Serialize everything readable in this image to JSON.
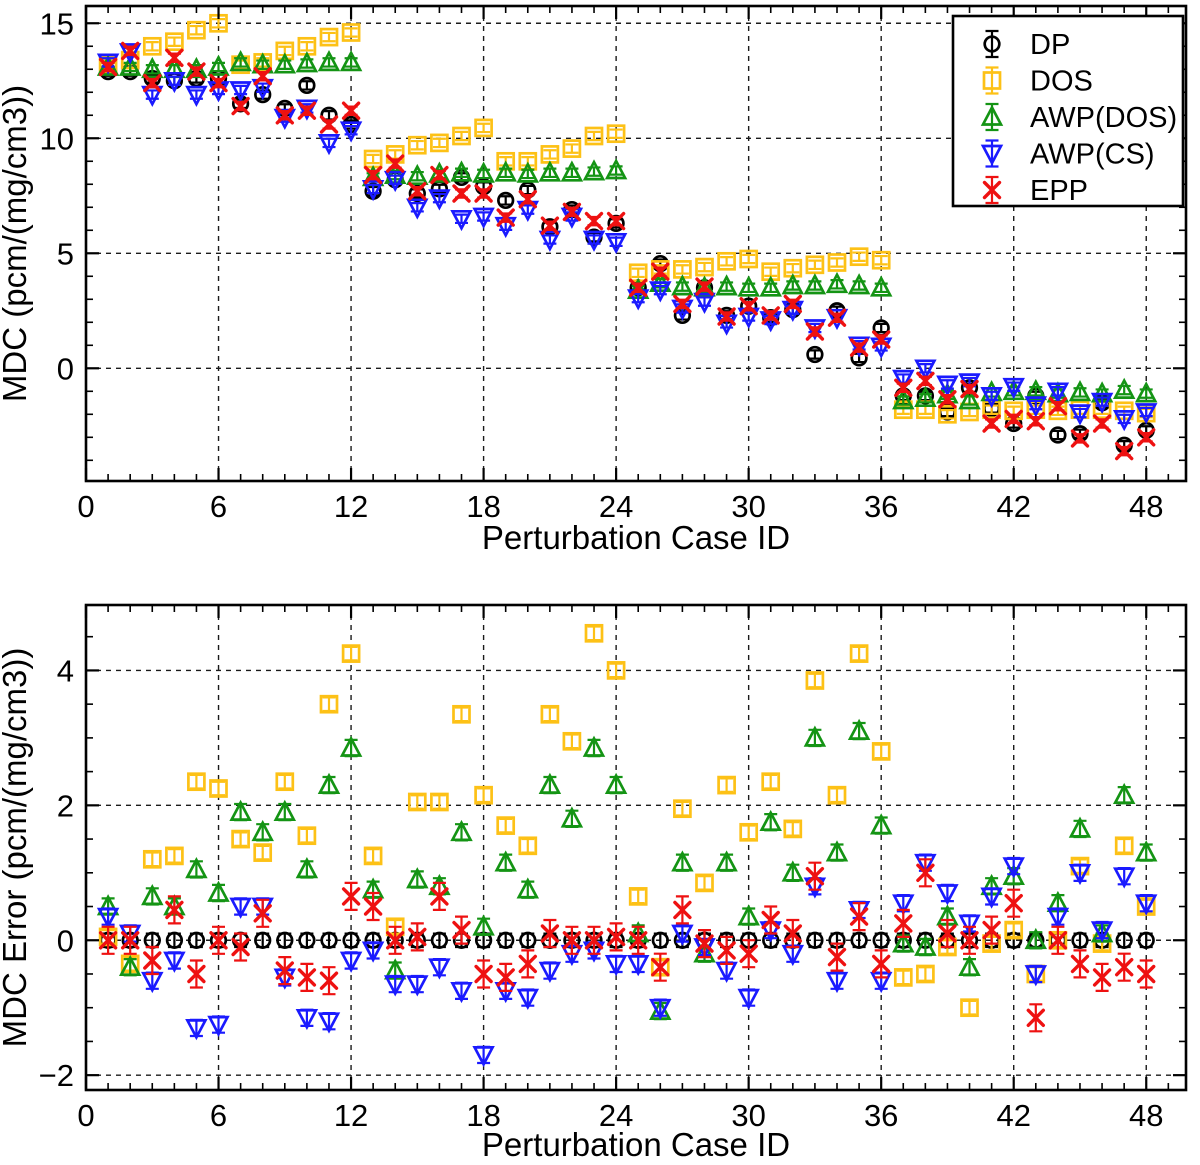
{
  "figure": {
    "background": "#ffffff"
  },
  "legend": {
    "items": [
      "DP",
      "DOS",
      "AWP(DOS)",
      "AWP(CS)",
      "EPP"
    ]
  },
  "colors": {
    "dp": "#000000",
    "dos": "#fdc116",
    "awp_dos": "#149414",
    "awp_cs": "#1a1aff",
    "epp": "#ee1111"
  },
  "chart_data": [
    {
      "id": "top",
      "type": "scatter",
      "title": "",
      "xlabel": "Perturbation Case ID",
      "ylabel": "MDC (pcm/(mg/cm3))",
      "xlim": [
        0,
        49.8
      ],
      "ylim": [
        -4.9,
        15.75
      ],
      "xticks": [
        0,
        6,
        12,
        18,
        24,
        30,
        36,
        42,
        48
      ],
      "yticks": [
        0,
        5,
        10,
        15
      ],
      "x_minor_step": 1,
      "y_minor_step": 1,
      "grid": "dashed",
      "legend": true,
      "x": [
        1,
        2,
        3,
        4,
        5,
        6,
        7,
        8,
        9,
        10,
        11,
        12,
        13,
        14,
        15,
        16,
        17,
        18,
        19,
        20,
        21,
        22,
        23,
        24,
        25,
        26,
        27,
        28,
        29,
        30,
        31,
        32,
        33,
        34,
        35,
        36,
        37,
        38,
        39,
        40,
        41,
        42,
        43,
        44,
        45,
        46,
        47,
        48
      ],
      "series": [
        {
          "name": "DP",
          "marker": "circle",
          "color": "#000000",
          "err": 0.18,
          "values": [
            12.9,
            12.9,
            12.6,
            12.5,
            12.6,
            12.6,
            11.5,
            11.9,
            11.3,
            12.3,
            11.0,
            10.6,
            7.7,
            8.2,
            7.6,
            7.8,
            8.3,
            7.9,
            7.3,
            7.75,
            6.15,
            6.9,
            5.7,
            6.3,
            3.5,
            4.55,
            2.3,
            3.5,
            2.3,
            2.7,
            2.2,
            2.55,
            0.6,
            2.5,
            0.45,
            1.75,
            -1.2,
            -1.2,
            -1.9,
            -0.85,
            -1.75,
            -2.4,
            -1.2,
            -2.9,
            -2.85,
            -1.5,
            -3.35,
            -2.7
          ]
        },
        {
          "name": "DOS",
          "marker": "square",
          "color": "#fdc116",
          "err": 0.18,
          "values": [
            13.2,
            13.4,
            14.0,
            14.2,
            14.7,
            15.0,
            13.2,
            13.3,
            13.8,
            14.0,
            14.4,
            14.6,
            9.1,
            9.3,
            9.7,
            9.8,
            10.1,
            10.45,
            9.0,
            9.0,
            9.3,
            9.55,
            10.1,
            10.2,
            4.15,
            4.3,
            4.3,
            4.4,
            4.65,
            4.75,
            4.2,
            4.35,
            4.5,
            4.6,
            4.85,
            4.7,
            -1.8,
            -1.8,
            -2.0,
            -1.9,
            -1.8,
            -1.85,
            -1.8,
            -1.85,
            -1.8,
            -1.8,
            -1.85,
            -1.95
          ]
        },
        {
          "name": "AWP(DOS)",
          "marker": "triangle-up",
          "color": "#149414",
          "err": 0.18,
          "values": [
            13.1,
            13.1,
            13.0,
            13.0,
            13.0,
            13.1,
            13.3,
            13.2,
            13.2,
            13.25,
            13.3,
            13.3,
            8.3,
            8.4,
            8.35,
            8.45,
            8.5,
            8.45,
            8.5,
            8.45,
            8.5,
            8.5,
            8.55,
            8.6,
            3.4,
            3.7,
            3.55,
            3.5,
            3.55,
            3.5,
            3.5,
            3.6,
            3.6,
            3.65,
            3.6,
            3.5,
            -1.4,
            -1.3,
            -1.15,
            -1.4,
            -1.05,
            -1.0,
            -1.0,
            -1.1,
            -1.05,
            -1.1,
            -0.95,
            -1.1
          ]
        },
        {
          "name": "AWP(CS)",
          "marker": "triangle-down",
          "color": "#1a1aff",
          "err": 0.18,
          "values": [
            13.3,
            13.75,
            11.9,
            12.5,
            11.9,
            12.1,
            12.1,
            12.2,
            10.9,
            11.3,
            9.8,
            10.35,
            7.8,
            8.2,
            7.0,
            7.4,
            6.5,
            6.6,
            6.2,
            6.9,
            5.6,
            6.6,
            5.6,
            5.5,
            3.05,
            3.4,
            2.6,
            2.9,
            1.95,
            2.25,
            2.1,
            2.55,
            1.75,
            2.2,
            1.0,
            0.95,
            -0.45,
            0.0,
            -0.7,
            -0.6,
            -1.2,
            -0.8,
            -1.6,
            -1.0,
            -1.95,
            -1.45,
            -2.2,
            -1.9
          ]
        },
        {
          "name": "EPP",
          "marker": "x",
          "color": "#ee1111",
          "err": 0.18,
          "values": [
            13.1,
            13.8,
            12.4,
            13.5,
            12.9,
            12.4,
            11.4,
            12.7,
            11.0,
            11.2,
            10.6,
            11.2,
            8.4,
            8.9,
            7.7,
            8.4,
            7.6,
            7.6,
            6.55,
            7.35,
            6.2,
            6.8,
            6.4,
            6.4,
            3.5,
            4.2,
            2.8,
            3.55,
            2.25,
            2.7,
            2.3,
            2.8,
            1.6,
            2.2,
            0.9,
            1.25,
            -0.85,
            -0.55,
            -1.35,
            -0.9,
            -2.4,
            -2.2,
            -2.3,
            -1.65,
            -3.05,
            -2.4,
            -3.6,
            -3.0
          ]
        }
      ]
    },
    {
      "id": "bottom",
      "type": "scatter",
      "title": "",
      "xlabel": "Perturbation Case ID",
      "ylabel": "MDC Error (pcm/(mg/cm3))",
      "xlim": [
        0,
        49.8
      ],
      "ylim": [
        -2.22,
        4.97
      ],
      "xticks": [
        0,
        6,
        12,
        18,
        24,
        30,
        36,
        42,
        48
      ],
      "yticks": [
        -2,
        0,
        2,
        4
      ],
      "x_minor_step": 1,
      "y_minor_step": 0.5,
      "grid": "dashed",
      "legend": false,
      "x": [
        1,
        2,
        3,
        4,
        5,
        6,
        7,
        8,
        9,
        10,
        11,
        12,
        13,
        14,
        15,
        16,
        17,
        18,
        19,
        20,
        21,
        22,
        23,
        24,
        25,
        26,
        27,
        28,
        29,
        30,
        31,
        32,
        33,
        34,
        35,
        36,
        37,
        38,
        39,
        40,
        41,
        42,
        43,
        44,
        45,
        46,
        47,
        48
      ],
      "series": [
        {
          "name": "DP",
          "marker": "circle",
          "color": "#000000",
          "err": 0.1,
          "values": [
            0,
            0,
            0,
            0,
            0,
            0,
            0,
            0,
            0,
            0,
            0,
            0,
            0,
            0,
            0,
            0,
            0,
            0,
            0,
            0,
            0,
            0,
            0,
            0,
            0,
            0,
            0,
            0,
            0,
            0,
            0,
            0,
            0,
            0,
            0,
            0,
            0,
            0,
            0,
            0,
            0,
            0,
            0,
            0,
            0,
            0,
            0,
            0
          ]
        },
        {
          "name": "DOS",
          "marker": "square",
          "color": "#fdc116",
          "err": 0.1,
          "values": [
            0.05,
            -0.35,
            1.2,
            1.25,
            2.35,
            2.25,
            1.5,
            1.3,
            2.35,
            1.55,
            3.5,
            4.25,
            1.25,
            0.2,
            2.05,
            2.05,
            3.35,
            2.15,
            1.7,
            1.4,
            3.35,
            2.95,
            4.55,
            4.0,
            0.65,
            -0.4,
            1.95,
            0.85,
            2.3,
            1.6,
            2.35,
            1.65,
            3.85,
            2.15,
            4.25,
            2.8,
            -0.55,
            -0.5,
            -0.1,
            -1.0,
            -0.05,
            0.15,
            -0.5,
            0.0,
            1.1,
            -0.05,
            1.4,
            0.5
          ]
        },
        {
          "name": "AWP(DOS)",
          "marker": "triangle-up",
          "color": "#149414",
          "err": 0.12,
          "values": [
            0.5,
            -0.4,
            0.65,
            0.5,
            1.05,
            0.7,
            1.9,
            1.6,
            1.9,
            1.05,
            2.3,
            2.85,
            0.75,
            -0.45,
            0.9,
            0.8,
            1.6,
            0.2,
            1.15,
            0.75,
            2.3,
            1.8,
            2.85,
            2.3,
            0.1,
            -1.05,
            1.15,
            -0.2,
            1.15,
            0.35,
            1.75,
            1.0,
            3.0,
            1.3,
            3.1,
            1.7,
            -0.05,
            -0.1,
            0.35,
            -0.4,
            0.8,
            0.95,
            0.0,
            0.55,
            1.65,
            0.1,
            2.15,
            1.3
          ]
        },
        {
          "name": "AWP(CS)",
          "marker": "triangle-down",
          "color": "#1a1aff",
          "err": 0.12,
          "values": [
            0.35,
            0.1,
            -0.6,
            -0.3,
            -1.3,
            -1.25,
            0.5,
            0.5,
            -0.55,
            -1.15,
            -1.2,
            -0.3,
            -0.15,
            -0.65,
            -0.65,
            -0.4,
            -0.75,
            -1.7,
            -0.75,
            -0.85,
            -0.45,
            -0.2,
            -0.15,
            -0.35,
            -0.35,
            -1.0,
            0.1,
            -0.1,
            -0.45,
            -0.85,
            0.15,
            -0.2,
            0.8,
            -0.6,
            0.45,
            -0.6,
            0.55,
            1.15,
            0.7,
            0.25,
            0.65,
            1.1,
            -0.5,
            0.35,
            1.0,
            0.15,
            0.95,
            0.55
          ]
        },
        {
          "name": "EPP",
          "marker": "x",
          "color": "#ee1111",
          "err": 0.2,
          "values": [
            0.0,
            0.0,
            -0.3,
            0.45,
            -0.5,
            0.0,
            -0.1,
            0.4,
            -0.45,
            -0.55,
            -0.6,
            0.65,
            0.5,
            0.0,
            0.05,
            0.65,
            0.15,
            -0.5,
            -0.55,
            -0.35,
            0.1,
            0.0,
            0.0,
            0.05,
            0.0,
            -0.4,
            0.45,
            -0.05,
            -0.15,
            -0.2,
            0.3,
            0.1,
            0.95,
            -0.25,
            0.35,
            -0.35,
            0.25,
            1.0,
            0.1,
            0.0,
            0.15,
            0.55,
            -1.15,
            0.0,
            -0.35,
            -0.55,
            -0.4,
            -0.5
          ]
        }
      ]
    }
  ]
}
